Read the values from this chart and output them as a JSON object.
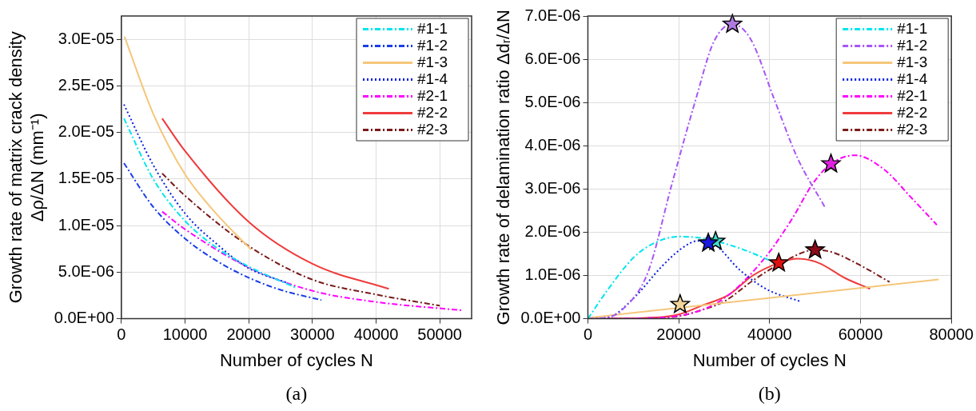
{
  "chart_data": [
    {
      "type": "line",
      "xlabel": "Number of cycles N",
      "ylabel": "Growth rate of matrix crack density\nΔρ/ΔN (mm⁻¹)",
      "annotations": [
        "(a)"
      ],
      "grid": true,
      "legend": "top right",
      "xlim": [
        0,
        55000
      ],
      "xticks": [
        0,
        10000,
        20000,
        30000,
        40000,
        50000
      ],
      "ylim": [
        0,
        3.25e-05
      ],
      "yticks": [
        {
          "value": 0,
          "label": "0.0E+00"
        },
        {
          "value": 5e-06,
          "label": "5.0E-06"
        },
        {
          "value": 1e-05,
          "label": "1.0E-05"
        },
        {
          "value": 1.5e-05,
          "label": "1.5E-05"
        },
        {
          "value": 2e-05,
          "label": "2.0E-05"
        },
        {
          "value": 2.5e-05,
          "label": "2.5E-05"
        },
        {
          "value": 3e-05,
          "label": "3.0E-05"
        }
      ],
      "series": [
        {
          "name": "#1-1",
          "color": "#00e5ee",
          "line_style": "dashed",
          "x": [
            400,
            5000,
            10000,
            15000,
            20000,
            27500
          ],
          "values": [
            2.15e-05,
            1.5e-05,
            1.05e-05,
            7.6e-06,
            5.6e-06,
            3.3e-06
          ]
        },
        {
          "name": "#1-2",
          "color": "#1a3ee8",
          "line_style": "dashed",
          "x": [
            400,
            5000,
            10000,
            15000,
            20000,
            25000,
            31400
          ],
          "values": [
            1.67e-05,
            1.2e-05,
            8.6e-06,
            6.2e-06,
            4.4e-06,
            3.1e-06,
            2e-06
          ]
        },
        {
          "name": "#1-3",
          "color": "#f5c67a",
          "line_style": "solid",
          "x": [
            480,
            5000,
            10000,
            15000,
            20400
          ],
          "values": [
            3.03e-05,
            2.2e-05,
            1.55e-05,
            1.12e-05,
            7.4e-06
          ]
        },
        {
          "name": "#1-4",
          "color": "#0a1fe0",
          "line_style": "dotted",
          "x": [
            400,
            5000,
            10000,
            15000,
            19800,
            26200
          ],
          "values": [
            2.3e-05,
            1.65e-05,
            1.13e-05,
            8e-06,
            5.5e-06,
            3.8e-06
          ]
        },
        {
          "name": "#2-1",
          "color": "#ff00ff",
          "line_style": "dashed",
          "x": [
            6400,
            10000,
            20000,
            30000,
            40000,
            53500
          ],
          "values": [
            1.15e-05,
            9.6e-06,
            5.5e-06,
            3e-06,
            1.8e-06,
            9e-07
          ]
        },
        {
          "name": "#2-2",
          "color": "#ef3b3b",
          "line_style": "solid",
          "x": [
            6400,
            10000,
            20000,
            30000,
            42000
          ],
          "values": [
            2.15e-05,
            1.8e-05,
            1.04e-05,
            5.9e-06,
            3.2e-06
          ]
        },
        {
          "name": "#2-3",
          "color": "#7a1a1a",
          "line_style": "dashed",
          "x": [
            6400,
            10000,
            20000,
            30000,
            40000,
            50000
          ],
          "values": [
            1.56e-05,
            1.32e-05,
            7.8e-06,
            4.2e-06,
            2.6e-06,
            1.4e-06
          ]
        }
      ]
    },
    {
      "type": "line",
      "xlabel": "Number of cycles N",
      "ylabel": "Growth rate of delamination ratio Δdᵣ/ΔN",
      "annotations": [
        "(b)"
      ],
      "grid": true,
      "legend": "top right",
      "xlim": [
        0,
        80000
      ],
      "xticks": [
        0,
        20000,
        40000,
        60000,
        80000
      ],
      "ylim": [
        0,
        7e-06
      ],
      "yticks": [
        {
          "value": 0,
          "label": "0.0E+00"
        },
        {
          "value": 1e-06,
          "label": "1.0E-06"
        },
        {
          "value": 2e-06,
          "label": "2.0E-06"
        },
        {
          "value": 3e-06,
          "label": "3.0E-06"
        },
        {
          "value": 4e-06,
          "label": "4.0E-06"
        },
        {
          "value": 5e-06,
          "label": "5.0E-06"
        },
        {
          "value": 6e-06,
          "label": "6.0E-06"
        },
        {
          "value": 7e-06,
          "label": "7.0E-06"
        }
      ],
      "series": [
        {
          "name": "#1-1",
          "color": "#00e5ee",
          "line_style": "dashed",
          "x": [
            0,
            4500,
            10300,
            15500,
            20100,
            25300,
            33400,
            40000
          ],
          "values": [
            0,
            6.9e-07,
            1.44e-06,
            1.79e-06,
            1.9e-06,
            1.86e-06,
            1.63e-06,
            1.35e-06
          ]
        },
        {
          "name": "#1-2",
          "color": "#a855f7",
          "line_style": "dashed",
          "x": [
            0,
            5000,
            7400,
            13200,
            18400,
            23600,
            27700,
            31800,
            35800,
            41000,
            46200,
            52100
          ],
          "values": [
            0,
            5e-08,
            1.9e-07,
            1.07e-06,
            3.08e-06,
            5.02e-06,
            6.4e-06,
            6.81e-06,
            6.47e-06,
            5.08e-06,
            3.7e-06,
            2.59e-06
          ]
        },
        {
          "name": "#1-3",
          "color": "#f5c67a",
          "line_style": "solid",
          "x": [
            0,
            77200
          ],
          "values": [
            2e-08,
            9.1e-07
          ]
        },
        {
          "name": "#1-4",
          "color": "#0a1fe0",
          "line_style": "dotted",
          "x": [
            0,
            4500,
            10300,
            16100,
            20700,
            24200,
            27700,
            33400,
            39200,
            47000
          ],
          "values": [
            0,
            3e-08,
            5e-07,
            1.19e-06,
            1.63e-06,
            1.8e-06,
            1.73e-06,
            1.13e-06,
            6.9e-07,
            3.9e-07
          ]
        },
        {
          "name": "#2-1",
          "color": "#ff00ff",
          "line_style": "dashed",
          "x": [
            0,
            15000,
            25000,
            31100,
            39200,
            45000,
            49600,
            53500,
            58800,
            65200,
            71000,
            76800
          ],
          "values": [
            0,
            2e-08,
            2e-07,
            5.6e-07,
            1.44e-06,
            2.32e-06,
            3.14e-06,
            3.58e-06,
            3.78e-06,
            3.45e-06,
            2.82e-06,
            2.17e-06
          ]
        },
        {
          "name": "#2-2",
          "color": "#ef3b3b",
          "line_style": "solid",
          "x": [
            0,
            15000,
            20000,
            25000,
            31100,
            36300,
            42000,
            46200,
            50800,
            56600,
            62100
          ],
          "values": [
            0,
            3e-08,
            1e-07,
            3e-07,
            5.6e-07,
            1e-06,
            1.29e-06,
            1.39e-06,
            1.29e-06,
            9.4e-07,
            6.9e-07
          ]
        },
        {
          "name": "#2-3",
          "color": "#7a1a1a",
          "line_style": "dashed",
          "x": [
            0,
            15000,
            20000,
            25000,
            30000,
            36300,
            42100,
            50000,
            53700,
            59500,
            66400
          ],
          "values": [
            0,
            2e-08,
            6e-08,
            2e-07,
            4e-07,
            8.8e-07,
            1.26e-06,
            1.59e-06,
            1.54e-06,
            1.26e-06,
            8.5e-07
          ]
        },
        {
          "type": "scatter",
          "marker": "star",
          "color": "#40e0d0",
          "x": [
            28100
          ],
          "values": [
            1.79e-06
          ]
        },
        {
          "type": "scatter",
          "marker": "star",
          "color": "#b07ae0",
          "x": [
            31800
          ],
          "values": [
            6.81e-06
          ]
        },
        {
          "type": "scatter",
          "marker": "star",
          "color": "#f0d49a",
          "x": [
            20300
          ],
          "values": [
            3.3e-07
          ]
        },
        {
          "type": "scatter",
          "marker": "star",
          "color": "#1a1ae0",
          "x": [
            26500
          ],
          "values": [
            1.75e-06
          ]
        },
        {
          "type": "scatter",
          "marker": "star",
          "color": "#e020e0",
          "x": [
            53500
          ],
          "values": [
            3.58e-06
          ]
        },
        {
          "type": "scatter",
          "marker": "star",
          "color": "#e01010",
          "x": [
            42000
          ],
          "values": [
            1.29e-06
          ]
        },
        {
          "type": "scatter",
          "marker": "star",
          "color": "#8b0a1a",
          "x": [
            50000
          ],
          "values": [
            1.59e-06
          ]
        }
      ]
    }
  ]
}
